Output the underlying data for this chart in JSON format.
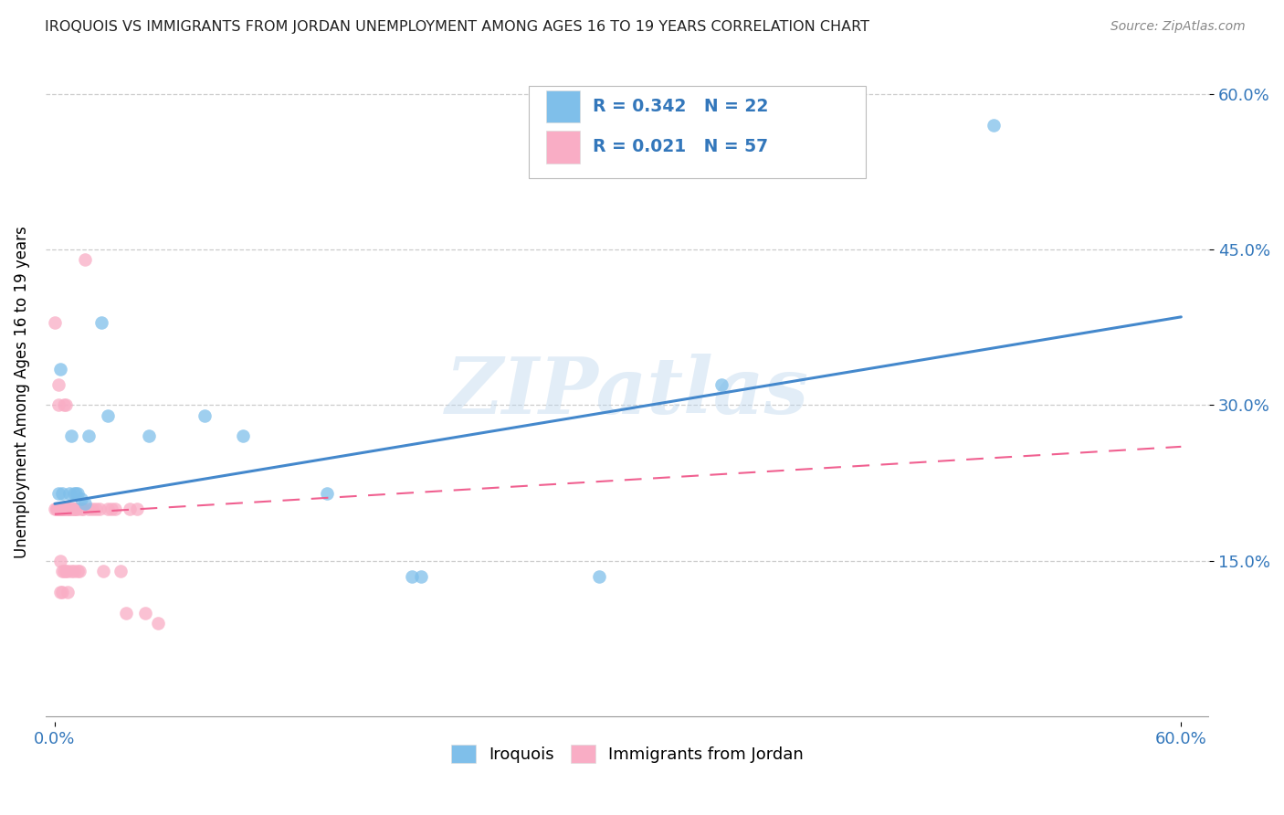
{
  "title": "IROQUOIS VS IMMIGRANTS FROM JORDAN UNEMPLOYMENT AMONG AGES 16 TO 19 YEARS CORRELATION CHART",
  "source": "Source: ZipAtlas.com",
  "ylabel": "Unemployment Among Ages 16 to 19 years",
  "xlim": [
    0.0,
    0.6
  ],
  "ylim": [
    0.0,
    0.6
  ],
  "ytick_vals": [
    0.15,
    0.3,
    0.45,
    0.6
  ],
  "ytick_labels": [
    "15.0%",
    "30.0%",
    "45.0%",
    "60.0%"
  ],
  "xtick_vals": [
    0.0,
    0.6
  ],
  "xtick_labels": [
    "0.0%",
    "60.0%"
  ],
  "legend_label1": "Iroquois",
  "legend_label2": "Immigrants from Jordan",
  "R1": "0.342",
  "N1": "22",
  "R2": "0.021",
  "N2": "57",
  "color_blue": "#7fbfea",
  "color_blue_line": "#4488cc",
  "color_pink": "#f9adc5",
  "color_pink_line": "#f06090",
  "color_blue_text": "#3377bb",
  "watermark_text": "ZIPatlas",
  "blue_line_x0": 0.0,
  "blue_line_y0": 0.205,
  "blue_line_x1": 0.6,
  "blue_line_y1": 0.385,
  "pink_line_x0": 0.0,
  "pink_line_y0": 0.195,
  "pink_line_x1": 0.6,
  "pink_line_y1": 0.26,
  "iroquois_x": [
    0.002,
    0.003,
    0.004,
    0.008,
    0.009,
    0.01,
    0.011,
    0.012,
    0.014,
    0.016,
    0.018,
    0.025,
    0.028,
    0.05,
    0.08,
    0.1,
    0.145,
    0.19,
    0.195,
    0.29,
    0.355,
    0.5
  ],
  "iroquois_y": [
    0.215,
    0.335,
    0.215,
    0.215,
    0.27,
    0.215,
    0.215,
    0.215,
    0.21,
    0.205,
    0.27,
    0.38,
    0.29,
    0.27,
    0.29,
    0.27,
    0.215,
    0.135,
    0.135,
    0.135,
    0.32,
    0.57
  ],
  "jordan_x": [
    0.0,
    0.0,
    0.001,
    0.001,
    0.002,
    0.002,
    0.002,
    0.002,
    0.003,
    0.003,
    0.003,
    0.003,
    0.003,
    0.003,
    0.004,
    0.004,
    0.004,
    0.004,
    0.005,
    0.005,
    0.005,
    0.005,
    0.006,
    0.006,
    0.006,
    0.007,
    0.007,
    0.007,
    0.007,
    0.008,
    0.008,
    0.009,
    0.009,
    0.01,
    0.01,
    0.01,
    0.011,
    0.012,
    0.012,
    0.013,
    0.014,
    0.015,
    0.016,
    0.018,
    0.02,
    0.022,
    0.024,
    0.026,
    0.028,
    0.03,
    0.032,
    0.035,
    0.038,
    0.04,
    0.044,
    0.048,
    0.055
  ],
  "jordan_y": [
    0.2,
    0.38,
    0.2,
    0.2,
    0.2,
    0.2,
    0.32,
    0.3,
    0.2,
    0.2,
    0.2,
    0.2,
    0.15,
    0.12,
    0.2,
    0.2,
    0.14,
    0.12,
    0.2,
    0.2,
    0.3,
    0.14,
    0.3,
    0.2,
    0.14,
    0.2,
    0.2,
    0.14,
    0.12,
    0.2,
    0.2,
    0.2,
    0.14,
    0.2,
    0.2,
    0.14,
    0.2,
    0.2,
    0.14,
    0.14,
    0.2,
    0.2,
    0.44,
    0.2,
    0.2,
    0.2,
    0.2,
    0.14,
    0.2,
    0.2,
    0.2,
    0.14,
    0.1,
    0.2,
    0.2,
    0.1,
    0.09
  ],
  "background_color": "#ffffff",
  "grid_color": "#cccccc"
}
